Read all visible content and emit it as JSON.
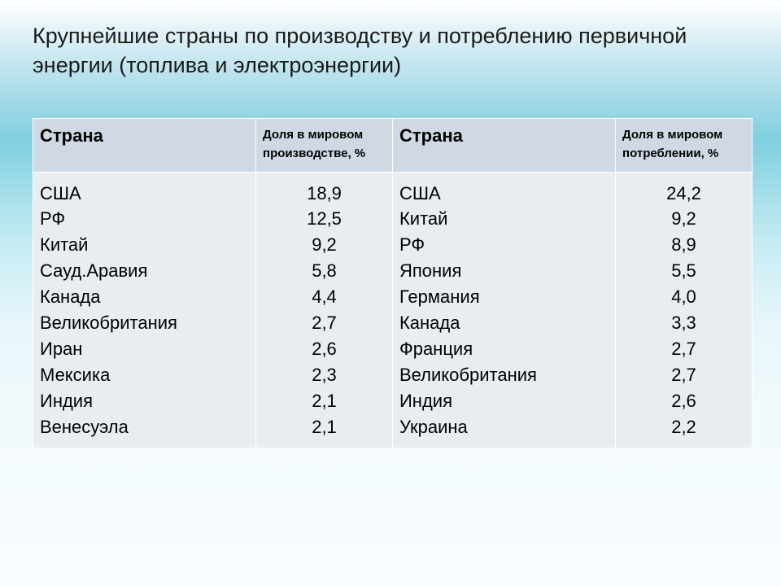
{
  "title": "Крупнейшие страны по производству и потреблению первичной энергии (топлива и электроэнергии)",
  "headers": {
    "country1": "Страна",
    "share1": "Доля в мировом производстве, %",
    "country2": "Страна",
    "share2": "Доля в мировом потреблении, %"
  },
  "production": {
    "countries": [
      "США",
      "РФ",
      "Китай",
      "Сауд.Аравия",
      "Канада",
      "Великобритания",
      "Иран",
      "Мексика",
      "Индия",
      "Венесуэла"
    ],
    "values": [
      "18,9",
      "12,5",
      "9,2",
      "5,8",
      "4,4",
      "2,7",
      "2,6",
      "2,3",
      "2,1",
      "2,1"
    ]
  },
  "consumption": {
    "countries": [
      "США",
      "Китай",
      "РФ",
      "Япония",
      "Германия",
      "Канада",
      "Франция",
      "Великобритания",
      "Индия",
      "Украина"
    ],
    "values": [
      "24,2",
      "9,2",
      "8,9",
      "5,5",
      "4,0",
      "3,3",
      "2,7",
      "2,7",
      "2,6",
      "2,2"
    ]
  },
  "style": {
    "header_bg": "#d0d9e3",
    "cell_bg": "#e9edf2",
    "border_color": "#ffffff",
    "title_fontsize": 27,
    "header_big_fontsize": 22,
    "header_small_fontsize": 15,
    "cell_fontsize": 22
  }
}
